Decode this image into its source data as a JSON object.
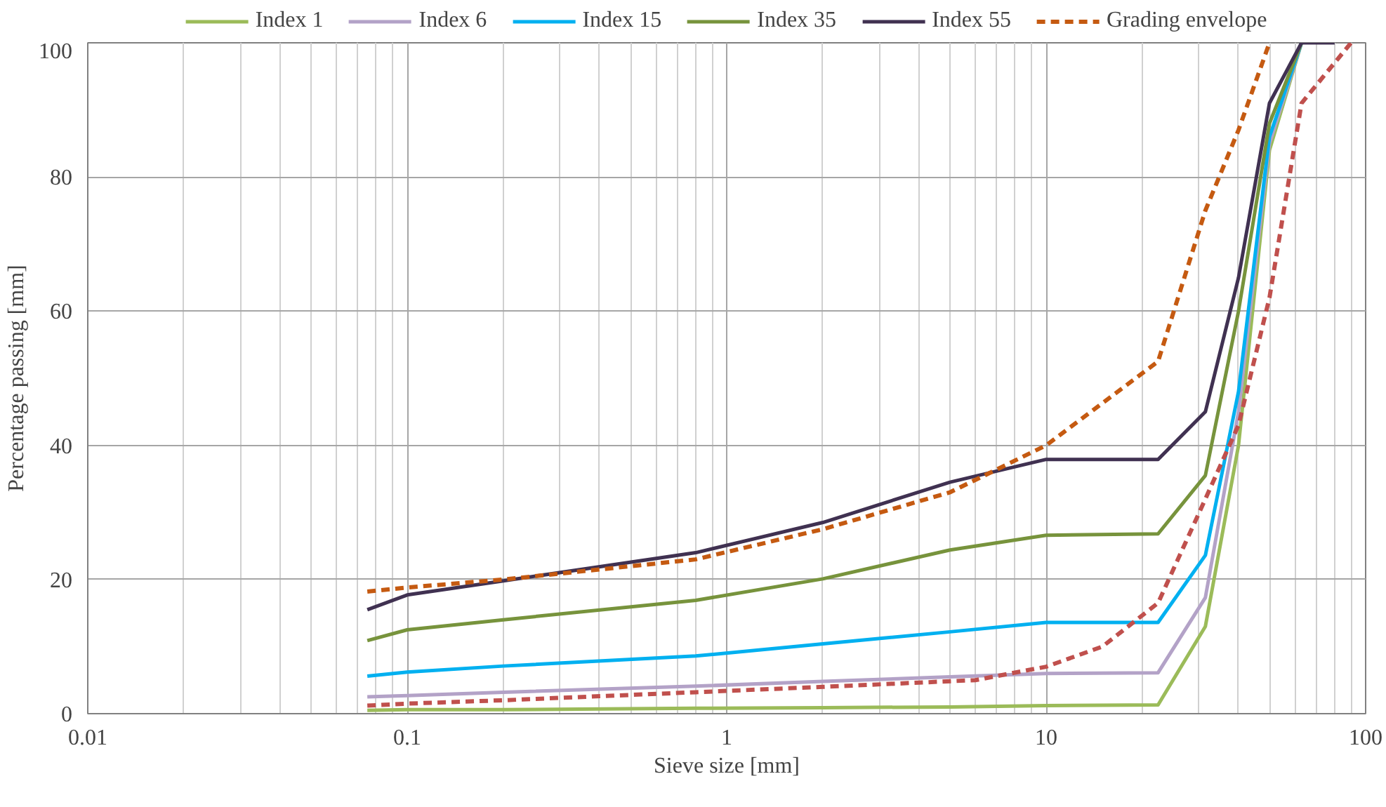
{
  "chart_data": {
    "type": "line",
    "xlabel": "Sieve size [mm]",
    "ylabel": "Percentage passing [mm]",
    "log": "x",
    "xlim": [
      0.01,
      100
    ],
    "ylim": [
      0,
      100
    ],
    "xticks": [
      {
        "value": 0.01,
        "label": "0.01"
      },
      {
        "value": 0.1,
        "label": "0.1"
      },
      1,
      10,
      100
    ],
    "yticks": [
      0,
      20,
      40,
      60,
      80,
      100
    ],
    "grid": true,
    "legend": "top",
    "line_style": "solid",
    "marker": "none",
    "series": [
      {
        "name": "Index 1",
        "color": "#9bbb59",
        "x": [
          0.075,
          0.1,
          0.2,
          0.8,
          2,
          5,
          10,
          22.4,
          31.5,
          40,
          50,
          63
        ],
        "values": [
          0.5,
          0.6,
          0.6,
          0.8,
          0.9,
          1,
          1.2,
          1.3,
          13,
          40,
          84,
          100
        ]
      },
      {
        "name": "Index 6",
        "color": "#b3a2c7",
        "x": [
          0.075,
          0.1,
          0.2,
          0.8,
          2,
          5,
          10,
          22.4,
          31.5,
          40,
          50,
          63
        ],
        "values": [
          2.5,
          2.7,
          3.2,
          4.1,
          4.8,
          5.5,
          6.0,
          6.1,
          17.3,
          45,
          85,
          100
        ]
      },
      {
        "name": "Index 15",
        "color": "#00b0f0",
        "x": [
          0.075,
          0.1,
          0.2,
          0.8,
          2,
          5,
          10,
          22.4,
          31.5,
          40,
          50,
          63
        ],
        "values": [
          5.6,
          6.2,
          7.1,
          8.6,
          10.4,
          12.2,
          13.6,
          13.6,
          23.6,
          48,
          86,
          100
        ]
      },
      {
        "name": "Index 35",
        "color": "#77933c",
        "x": [
          0.075,
          0.1,
          0.2,
          0.8,
          2,
          5,
          10,
          22.4,
          31.5,
          40,
          50,
          63
        ],
        "values": [
          10.9,
          12.5,
          14,
          16.9,
          20.1,
          24.4,
          26.6,
          26.8,
          35.5,
          60,
          88,
          100
        ]
      },
      {
        "name": "Index 55",
        "color": "#403151",
        "x": [
          0.075,
          0.1,
          0.2,
          0.8,
          2,
          5,
          10,
          22.4,
          31.5,
          40,
          50,
          63,
          80
        ],
        "values": [
          15.5,
          17.7,
          19.8,
          24,
          28.5,
          34.5,
          37.9,
          37.9,
          45,
          65,
          91,
          100,
          100
        ]
      },
      {
        "name": "Grading envelope",
        "color": "#c55a11",
        "line_style": "dashed",
        "x": [
          0.075,
          0.1,
          0.2,
          0.8,
          2,
          5,
          10,
          22.4,
          31.5,
          40,
          50
        ],
        "values": [
          18.2,
          18.8,
          20,
          23,
          27.5,
          33,
          40,
          52.5,
          75,
          87,
          100
        ]
      },
      {
        "color": "#c0504d",
        "line_style": "dashed",
        "x": [
          0.075,
          0.1,
          0.2,
          0.8,
          2,
          6,
          10,
          15,
          22.4,
          31.5,
          40,
          50,
          63,
          90
        ],
        "values": [
          1.2,
          1.5,
          2,
          3.2,
          4,
          5,
          7,
          10,
          16.5,
          32,
          43,
          62,
          91,
          100
        ]
      }
    ]
  }
}
